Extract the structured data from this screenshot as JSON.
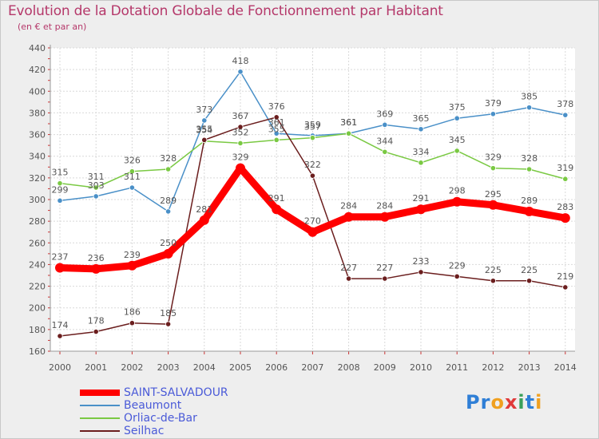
{
  "header": {
    "title": "Evolution de la Dotation Globale de Fonctionnement par Habitant",
    "subtitle": "(en € et par an)"
  },
  "logo": {
    "parts": [
      {
        "text": "P",
        "color": "#2f7fd6"
      },
      {
        "text": "r",
        "color": "#2f7fd6"
      },
      {
        "text": "o",
        "color": "#f0a020"
      },
      {
        "text": "x",
        "color": "#e03a3a"
      },
      {
        "text": "i",
        "color": "#3aa05a"
      },
      {
        "text": "t",
        "color": "#2f7fd6"
      },
      {
        "text": "i",
        "color": "#f0a020"
      }
    ]
  },
  "chart_data": {
    "type": "line",
    "title": "Evolution de la Dotation Globale de Fonctionnement par Habitant",
    "xlabel": "",
    "ylabel": "(en € et par an)",
    "ylim": [
      160,
      440
    ],
    "yticks": [
      160,
      180,
      200,
      220,
      240,
      260,
      280,
      300,
      320,
      340,
      360,
      380,
      400,
      420,
      440
    ],
    "categories": [
      "2000",
      "2001",
      "2002",
      "2003",
      "2004",
      "2005",
      "2006",
      "2007",
      "2008",
      "2009",
      "2010",
      "2011",
      "2012",
      "2013",
      "2014"
    ],
    "series": [
      {
        "name": "SAINT-SALVADOUR",
        "color": "#ff0000",
        "values": [
          237,
          236,
          239,
          250,
          281,
          329,
          291,
          270,
          284,
          284,
          291,
          298,
          295,
          289,
          283
        ]
      },
      {
        "name": "Beaumont",
        "color": "#4a90c8",
        "values": [
          299,
          303,
          311,
          289,
          373,
          418,
          361,
          359,
          361,
          369,
          365,
          375,
          379,
          385,
          378
        ]
      },
      {
        "name": "Orliac-de-Bar",
        "color": "#7ac943",
        "values": [
          315,
          311,
          326,
          328,
          354,
          352,
          355,
          357,
          361,
          344,
          334,
          345,
          329,
          328,
          319
        ]
      },
      {
        "name": "Seilhac",
        "color": "#6b1e1e",
        "values": [
          174,
          178,
          186,
          185,
          355,
          367,
          376,
          322,
          227,
          227,
          233,
          229,
          225,
          225,
          219
        ]
      }
    ]
  }
}
